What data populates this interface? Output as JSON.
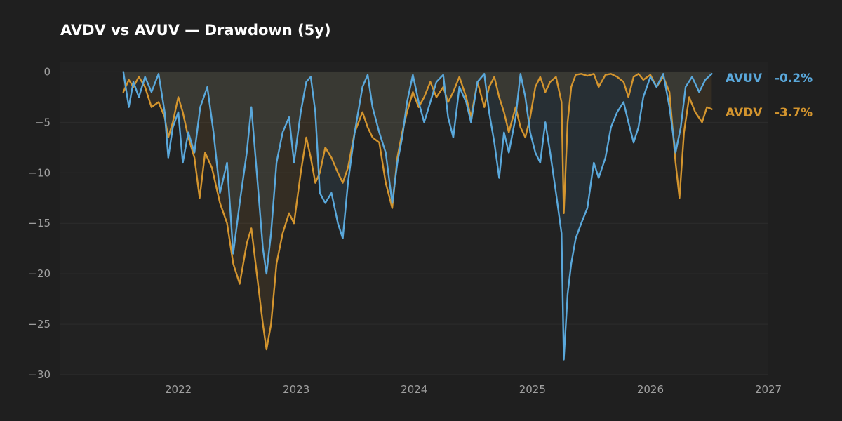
{
  "title": "AVDV vs AVUV — Drawdown (5y)",
  "colors": {
    "background": "#1f1f1f",
    "plot_area": "#222222",
    "grid": "#2d2d2d",
    "axis_text": "#a0a0a0",
    "title_text": "#ffffff"
  },
  "chart_data": {
    "type": "line",
    "title": "AVDV vs AVUV — Drawdown (5y)",
    "xlabel": "",
    "ylabel": "",
    "x_axis": "date",
    "xlim": [
      "2021-01-01",
      "2027-01-01"
    ],
    "ylim": [
      -30,
      1.0
    ],
    "xticks": [
      {
        "date": "2022-01-01",
        "label": "2022"
      },
      {
        "date": "2023-01-01",
        "label": "2023"
      },
      {
        "date": "2024-01-01",
        "label": "2024"
      },
      {
        "date": "2025-01-01",
        "label": "2025"
      },
      {
        "date": "2026-01-01",
        "label": "2026"
      },
      {
        "date": "2027-01-01",
        "label": "2027"
      }
    ],
    "yticks": [
      0,
      -5,
      -10,
      -15,
      -20,
      -25,
      -30
    ],
    "ytick_labels": [
      "0",
      "−5",
      "−10",
      "−15",
      "−20",
      "−25",
      "−30"
    ],
    "grid": true,
    "legend": "right-end labels",
    "series": [
      {
        "name": "AVUV",
        "color": "#5aa8db",
        "end_label": "AVUV",
        "end_value": "-0.2%",
        "points": [
          [
            "2021-07-15",
            0.0
          ],
          [
            "2021-08-01",
            -3.5
          ],
          [
            "2021-08-15",
            -1.0
          ],
          [
            "2021-09-01",
            -2.5
          ],
          [
            "2021-09-20",
            -0.5
          ],
          [
            "2021-10-10",
            -2.0
          ],
          [
            "2021-11-01",
            -0.2
          ],
          [
            "2021-11-20",
            -4.0
          ],
          [
            "2021-12-01",
            -8.5
          ],
          [
            "2021-12-15",
            -5.5
          ],
          [
            "2022-01-01",
            -4.0
          ],
          [
            "2022-01-15",
            -9.0
          ],
          [
            "2022-02-01",
            -6.0
          ],
          [
            "2022-02-20",
            -8.0
          ],
          [
            "2022-03-10",
            -3.5
          ],
          [
            "2022-04-01",
            -1.5
          ],
          [
            "2022-04-20",
            -6.0
          ],
          [
            "2022-05-10",
            -12.0
          ],
          [
            "2022-06-01",
            -9.0
          ],
          [
            "2022-06-20",
            -18.0
          ],
          [
            "2022-07-10",
            -13.0
          ],
          [
            "2022-08-01",
            -8.0
          ],
          [
            "2022-08-15",
            -3.5
          ],
          [
            "2022-09-01",
            -10.0
          ],
          [
            "2022-09-20",
            -17.5
          ],
          [
            "2022-10-01",
            -20.0
          ],
          [
            "2022-10-15",
            -16.0
          ],
          [
            "2022-11-01",
            -9.0
          ],
          [
            "2022-11-20",
            -6.0
          ],
          [
            "2022-12-10",
            -4.5
          ],
          [
            "2022-12-25",
            -9.0
          ],
          [
            "2023-01-15",
            -4.0
          ],
          [
            "2023-02-01",
            -1.0
          ],
          [
            "2023-02-15",
            -0.5
          ],
          [
            "2023-03-01",
            -4.0
          ],
          [
            "2023-03-15",
            -12.0
          ],
          [
            "2023-04-01",
            -13.0
          ],
          [
            "2023-04-20",
            -12.0
          ],
          [
            "2023-05-10",
            -15.0
          ],
          [
            "2023-05-25",
            -16.5
          ],
          [
            "2023-06-10",
            -11.0
          ],
          [
            "2023-07-01",
            -6.0
          ],
          [
            "2023-07-25",
            -1.5
          ],
          [
            "2023-08-10",
            -0.3
          ],
          [
            "2023-08-25",
            -3.5
          ],
          [
            "2023-09-15",
            -6.0
          ],
          [
            "2023-10-05",
            -8.0
          ],
          [
            "2023-10-25",
            -13.0
          ],
          [
            "2023-11-10",
            -9.0
          ],
          [
            "2023-11-25",
            -6.5
          ],
          [
            "2023-12-10",
            -3.0
          ],
          [
            "2023-12-28",
            -0.3
          ],
          [
            "2024-01-15",
            -3.0
          ],
          [
            "2024-02-01",
            -5.0
          ],
          [
            "2024-02-20",
            -3.0
          ],
          [
            "2024-03-10",
            -1.0
          ],
          [
            "2024-03-31",
            -0.3
          ],
          [
            "2024-04-15",
            -4.5
          ],
          [
            "2024-05-01",
            -6.5
          ],
          [
            "2024-05-20",
            -1.5
          ],
          [
            "2024-06-10",
            -3.0
          ],
          [
            "2024-06-25",
            -5.0
          ],
          [
            "2024-07-15",
            -1.0
          ],
          [
            "2024-08-05",
            -0.2
          ],
          [
            "2024-08-20",
            -4.0
          ],
          [
            "2024-09-05",
            -7.0
          ],
          [
            "2024-09-20",
            -10.5
          ],
          [
            "2024-10-05",
            -6.0
          ],
          [
            "2024-10-20",
            -8.0
          ],
          [
            "2024-11-10",
            -4.5
          ],
          [
            "2024-11-25",
            -0.2
          ],
          [
            "2024-12-10",
            -2.5
          ],
          [
            "2024-12-25",
            -6.0
          ],
          [
            "2025-01-10",
            -8.0
          ],
          [
            "2025-01-25",
            -9.0
          ],
          [
            "2025-02-10",
            -5.0
          ],
          [
            "2025-02-25",
            -8.0
          ],
          [
            "2025-03-15",
            -12.0
          ],
          [
            "2025-04-01",
            -16.0
          ],
          [
            "2025-04-08",
            -28.5
          ],
          [
            "2025-04-20",
            -22.0
          ],
          [
            "2025-05-01",
            -19.0
          ],
          [
            "2025-05-15",
            -16.5
          ],
          [
            "2025-06-01",
            -15.0
          ],
          [
            "2025-06-20",
            -13.5
          ],
          [
            "2025-07-10",
            -9.0
          ],
          [
            "2025-07-25",
            -10.5
          ],
          [
            "2025-08-15",
            -8.5
          ],
          [
            "2025-09-01",
            -5.5
          ],
          [
            "2025-09-20",
            -4.0
          ],
          [
            "2025-10-10",
            -3.0
          ],
          [
            "2025-10-25",
            -5.0
          ],
          [
            "2025-11-10",
            -7.0
          ],
          [
            "2025-11-25",
            -5.5
          ],
          [
            "2025-12-10",
            -2.5
          ],
          [
            "2026-01-01",
            -0.5
          ],
          [
            "2026-01-20",
            -1.5
          ],
          [
            "2026-02-10",
            -0.2
          ],
          [
            "2026-03-01",
            -3.5
          ],
          [
            "2026-03-20",
            -8.0
          ],
          [
            "2026-04-05",
            -5.5
          ],
          [
            "2026-04-20",
            -1.5
          ],
          [
            "2026-05-10",
            -0.5
          ],
          [
            "2026-06-01",
            -2.0
          ],
          [
            "2026-06-20",
            -0.8
          ],
          [
            "2026-07-10",
            -0.2
          ]
        ]
      },
      {
        "name": "AVDV",
        "color": "#d4952e",
        "end_label": "AVDV",
        "end_value": "-3.7%",
        "points": [
          [
            "2021-07-15",
            -2.0
          ],
          [
            "2021-08-01",
            -0.8
          ],
          [
            "2021-08-15",
            -1.5
          ],
          [
            "2021-09-01",
            -0.5
          ],
          [
            "2021-09-20",
            -1.5
          ],
          [
            "2021-10-10",
            -3.5
          ],
          [
            "2021-11-01",
            -3.0
          ],
          [
            "2021-11-20",
            -4.5
          ],
          [
            "2021-12-01",
            -6.5
          ],
          [
            "2021-12-15",
            -5.0
          ],
          [
            "2022-01-01",
            -2.5
          ],
          [
            "2022-01-15",
            -4.0
          ],
          [
            "2022-02-01",
            -6.5
          ],
          [
            "2022-02-20",
            -8.5
          ],
          [
            "2022-03-08",
            -12.5
          ],
          [
            "2022-03-25",
            -8.0
          ],
          [
            "2022-04-15",
            -9.5
          ],
          [
            "2022-05-10",
            -13.0
          ],
          [
            "2022-06-01",
            -15.0
          ],
          [
            "2022-06-20",
            -19.0
          ],
          [
            "2022-07-10",
            -21.0
          ],
          [
            "2022-08-01",
            -17.0
          ],
          [
            "2022-08-15",
            -15.5
          ],
          [
            "2022-09-01",
            -20.0
          ],
          [
            "2022-09-20",
            -25.0
          ],
          [
            "2022-10-01",
            -27.5
          ],
          [
            "2022-10-15",
            -25.0
          ],
          [
            "2022-11-01",
            -19.0
          ],
          [
            "2022-11-20",
            -16.0
          ],
          [
            "2022-12-10",
            -14.0
          ],
          [
            "2022-12-25",
            -15.0
          ],
          [
            "2023-01-15",
            -10.0
          ],
          [
            "2023-02-01",
            -6.5
          ],
          [
            "2023-02-15",
            -8.5
          ],
          [
            "2023-03-01",
            -11.0
          ],
          [
            "2023-03-15",
            -10.0
          ],
          [
            "2023-04-01",
            -7.5
          ],
          [
            "2023-04-20",
            -8.5
          ],
          [
            "2023-05-10",
            -10.0
          ],
          [
            "2023-05-25",
            -11.0
          ],
          [
            "2023-06-10",
            -9.5
          ],
          [
            "2023-07-01",
            -6.0
          ],
          [
            "2023-07-25",
            -4.0
          ],
          [
            "2023-08-10",
            -5.5
          ],
          [
            "2023-08-25",
            -6.5
          ],
          [
            "2023-09-15",
            -7.0
          ],
          [
            "2023-10-05",
            -11.0
          ],
          [
            "2023-10-25",
            -13.5
          ],
          [
            "2023-11-10",
            -8.5
          ],
          [
            "2023-11-25",
            -6.0
          ],
          [
            "2023-12-10",
            -4.0
          ],
          [
            "2023-12-28",
            -2.0
          ],
          [
            "2024-01-15",
            -3.5
          ],
          [
            "2024-02-01",
            -2.5
          ],
          [
            "2024-02-20",
            -1.0
          ],
          [
            "2024-03-10",
            -2.5
          ],
          [
            "2024-03-31",
            -1.5
          ],
          [
            "2024-04-15",
            -3.0
          ],
          [
            "2024-05-01",
            -2.0
          ],
          [
            "2024-05-20",
            -0.5
          ],
          [
            "2024-06-10",
            -2.5
          ],
          [
            "2024-06-25",
            -4.5
          ],
          [
            "2024-07-15",
            -1.0
          ],
          [
            "2024-08-05",
            -3.5
          ],
          [
            "2024-08-20",
            -1.5
          ],
          [
            "2024-09-05",
            -0.5
          ],
          [
            "2024-09-20",
            -2.5
          ],
          [
            "2024-10-05",
            -4.0
          ],
          [
            "2024-10-20",
            -6.0
          ],
          [
            "2024-11-10",
            -3.5
          ],
          [
            "2024-11-25",
            -5.5
          ],
          [
            "2024-12-10",
            -6.5
          ],
          [
            "2024-12-25",
            -4.5
          ],
          [
            "2025-01-10",
            -1.5
          ],
          [
            "2025-01-25",
            -0.5
          ],
          [
            "2025-02-10",
            -2.0
          ],
          [
            "2025-02-25",
            -1.0
          ],
          [
            "2025-03-15",
            -0.5
          ],
          [
            "2025-04-01",
            -3.0
          ],
          [
            "2025-04-08",
            -14.0
          ],
          [
            "2025-04-20",
            -5.0
          ],
          [
            "2025-05-01",
            -1.5
          ],
          [
            "2025-05-15",
            -0.3
          ],
          [
            "2025-06-01",
            -0.2
          ],
          [
            "2025-06-20",
            -0.4
          ],
          [
            "2025-07-10",
            -0.2
          ],
          [
            "2025-07-25",
            -1.5
          ],
          [
            "2025-08-15",
            -0.3
          ],
          [
            "2025-09-01",
            -0.2
          ],
          [
            "2025-09-20",
            -0.5
          ],
          [
            "2025-10-10",
            -1.0
          ],
          [
            "2025-10-25",
            -2.5
          ],
          [
            "2025-11-10",
            -0.5
          ],
          [
            "2025-11-25",
            -0.2
          ],
          [
            "2025-12-10",
            -0.8
          ],
          [
            "2026-01-01",
            -0.3
          ],
          [
            "2026-01-20",
            -1.5
          ],
          [
            "2026-02-10",
            -0.5
          ],
          [
            "2026-03-01",
            -2.0
          ],
          [
            "2026-03-20",
            -9.0
          ],
          [
            "2026-04-01",
            -12.5
          ],
          [
            "2026-04-15",
            -6.0
          ],
          [
            "2026-05-01",
            -2.5
          ],
          [
            "2026-05-20",
            -4.0
          ],
          [
            "2026-06-10",
            -5.0
          ],
          [
            "2026-06-25",
            -3.5
          ],
          [
            "2026-07-10",
            -3.7
          ]
        ]
      }
    ]
  }
}
